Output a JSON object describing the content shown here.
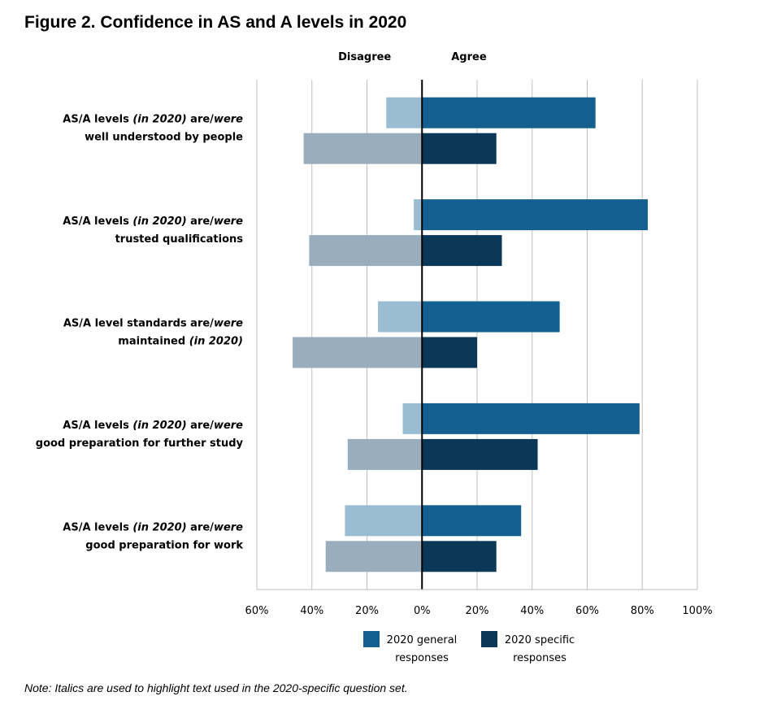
{
  "title": "Figure 2. Confidence in AS and A levels in 2020",
  "note": "Note: Italics are used to highlight text used in the 2020-specific question set.",
  "chart_data": {
    "type": "bar",
    "orientation": "horizontal-diverging",
    "side_labels": {
      "left": "Disagree",
      "right": "Agree"
    },
    "categories": [
      {
        "lines": [
          [
            {
              "t": "AS/A levels "
            },
            {
              "t": "(in 2020)",
              "i": true
            },
            {
              "t": " are/"
            },
            {
              "t": "were",
              "i": true
            }
          ],
          [
            {
              "t": "well understood by people"
            }
          ]
        ]
      },
      {
        "lines": [
          [
            {
              "t": "AS/A levels "
            },
            {
              "t": "(in 2020)",
              "i": true
            },
            {
              "t": " are/"
            },
            {
              "t": "were",
              "i": true
            }
          ],
          [
            {
              "t": "trusted qualifications"
            }
          ]
        ]
      },
      {
        "lines": [
          [
            {
              "t": "AS/A level standards are/"
            },
            {
              "t": "were",
              "i": true
            }
          ],
          [
            {
              "t": "maintained "
            },
            {
              "t": "(in 2020)",
              "i": true
            }
          ]
        ]
      },
      {
        "lines": [
          [
            {
              "t": "AS/A levels "
            },
            {
              "t": "(in 2020)",
              "i": true
            },
            {
              "t": " are/"
            },
            {
              "t": "were",
              "i": true
            }
          ],
          [
            {
              "t": "good preparation for further study"
            }
          ]
        ]
      },
      {
        "lines": [
          [
            {
              "t": "AS/A levels "
            },
            {
              "t": "(in 2020)",
              "i": true
            },
            {
              "t": " are/"
            },
            {
              "t": "were",
              "i": true
            }
          ],
          [
            {
              "t": "good preparation for work"
            }
          ]
        ]
      }
    ],
    "series": [
      {
        "name": "2020 general responses",
        "disagree": [
          13,
          3,
          16,
          7,
          28
        ],
        "agree": [
          63,
          82,
          50,
          79,
          36
        ],
        "color": "#135f8f",
        "disagree_color": "#9bbdd4"
      },
      {
        "name": "2020 specific responses",
        "disagree": [
          43,
          41,
          47,
          27,
          35
        ],
        "agree": [
          27,
          29,
          20,
          42,
          27
        ],
        "color": "#0c3857",
        "disagree_color": "#9aadbc"
      }
    ],
    "x_ticks": [
      "60%",
      "40%",
      "20%",
      "0%",
      "20%",
      "40%",
      "60%",
      "80%",
      "100%"
    ],
    "xlim": [
      -60,
      100
    ],
    "gridlines": [
      -60,
      -40,
      -20,
      0,
      20,
      40,
      60,
      80,
      100
    ],
    "legend": {
      "position": "bottom",
      "items": [
        {
          "lines": [
            "2020 general",
            "responses"
          ],
          "color": "#135f8f"
        },
        {
          "lines": [
            "2020 specific",
            "responses"
          ],
          "color": "#0c3857"
        }
      ]
    }
  }
}
